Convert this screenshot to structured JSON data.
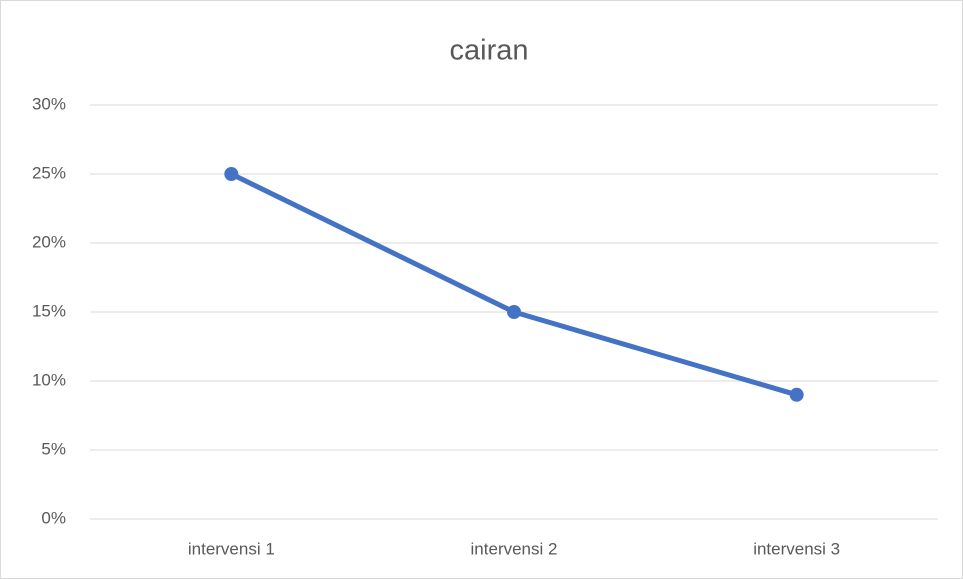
{
  "chart_data": {
    "type": "line",
    "title": "cairan",
    "categories": [
      "intervensi 1",
      "intervensi 2",
      "intervensi 3"
    ],
    "values": [
      25,
      15,
      9
    ],
    "color": "#4472c4",
    "ylim": [
      0,
      30
    ],
    "yticks": [
      {
        "value": 0,
        "label": "0%"
      },
      {
        "value": 5,
        "label": "5%"
      },
      {
        "value": 10,
        "label": "10%"
      },
      {
        "value": 15,
        "label": "15%"
      },
      {
        "value": 20,
        "label": "20%"
      },
      {
        "value": 25,
        "label": "25%"
      },
      {
        "value": 30,
        "label": "30%"
      }
    ],
    "grid": true
  }
}
